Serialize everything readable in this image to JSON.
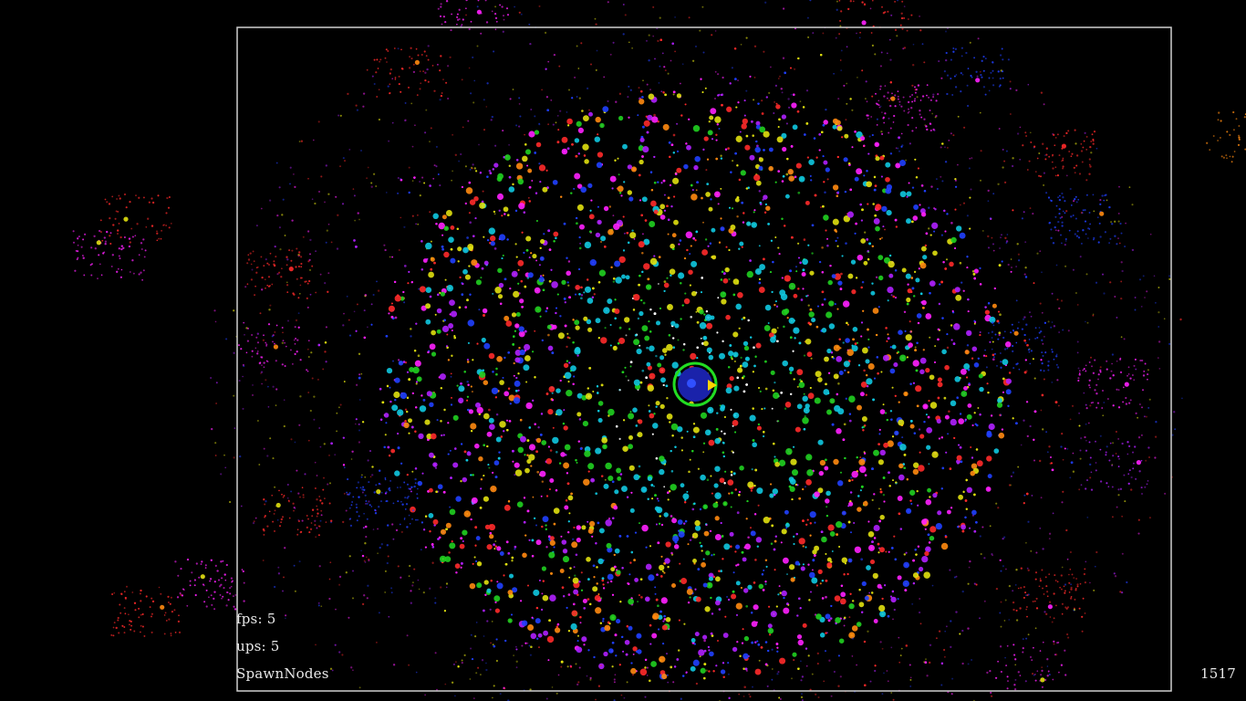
{
  "hud": {
    "fps_label": "fps:",
    "fps_value": "5",
    "ups_label": "ups:",
    "ups_value": "5",
    "mode": "SpawnNodes",
    "counter": "1517"
  },
  "colors": {
    "background": "#000000",
    "border": "#cfcfcf",
    "player_ring": "#22dd22",
    "player_core": "#1a22aa",
    "player_pointer": "#ffd400",
    "hud_text": "#e8e8e8"
  },
  "particle_palette": [
    "#ff2a2a",
    "#e0e010",
    "#10c8e0",
    "#ff20ff",
    "#2040ff",
    "#20d020",
    "#ff8a10",
    "#b020ff",
    "#ffffff"
  ]
}
